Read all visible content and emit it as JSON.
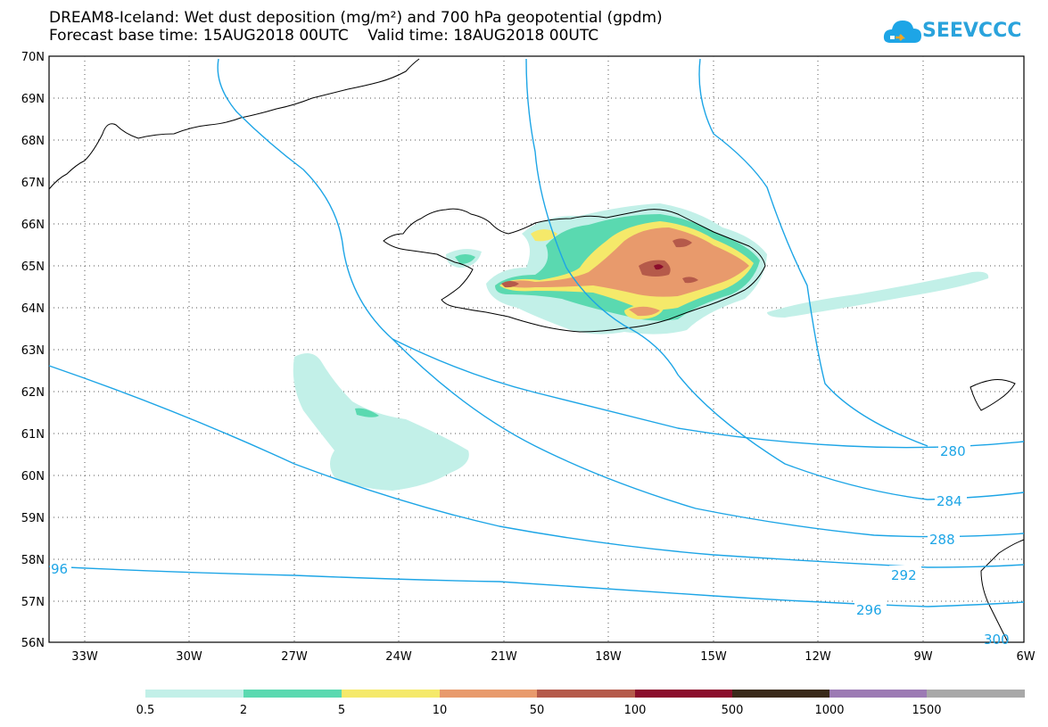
{
  "title": {
    "line1": "DREAM8-Iceland: Wet dust deposition (mg/m²) and 700 hPa geopotential (gpdm)",
    "line2": "Forecast base time: 15AUG2018 00UTC    Valid time: 18AUG2018 00UTC"
  },
  "logo": {
    "text": "SEEVCCC",
    "icon": "cloud-icon",
    "color": "#1da5e6"
  },
  "axes": {
    "lat_labels": [
      "70N",
      "69N",
      "68N",
      "67N",
      "66N",
      "65N",
      "64N",
      "63N",
      "62N",
      "61N",
      "60N",
      "59N",
      "58N",
      "57N",
      "56N"
    ],
    "lon_labels": [
      "33W",
      "30W",
      "27W",
      "24W",
      "21W",
      "18W",
      "15W",
      "12W",
      "9W",
      "6W"
    ]
  },
  "contours": {
    "color": "#1da5e6",
    "labels": [
      "280",
      "284",
      "288",
      "292",
      "296",
      "96",
      "300"
    ]
  },
  "colorbar": {
    "colors": [
      "#c2f0e8",
      "#5ad9b0",
      "#f5e96a",
      "#e89a6c",
      "#b55a4a",
      "#8b0d2b",
      "#3a2a1a",
      "#9c7ab4",
      "#a8a8a8"
    ],
    "labels": [
      "0.5",
      "2",
      "5",
      "10",
      "50",
      "100",
      "500",
      "1000",
      "1500"
    ]
  }
}
